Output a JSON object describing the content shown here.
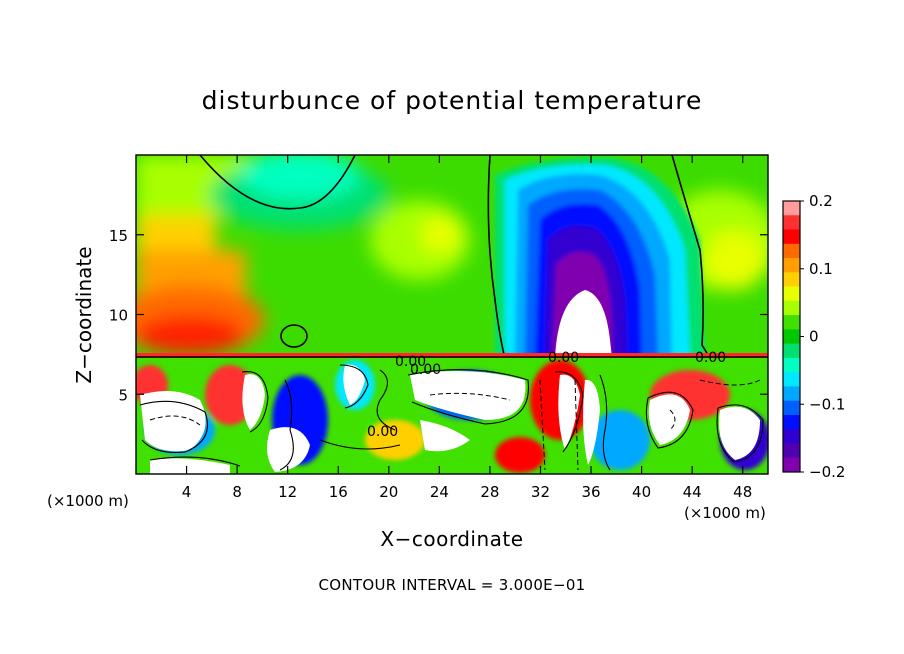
{
  "chart_data": {
    "type": "heatmap",
    "title": "disturbunce of potential temperature",
    "xlabel": "X−coordinate",
    "ylabel": "Z−coordinate",
    "x_unit": "(×1000 m)",
    "x_ticks": [
      4,
      8,
      12,
      16,
      20,
      24,
      28,
      32,
      36,
      40,
      44,
      48
    ],
    "x_tick_labels": [
      "4",
      "8",
      "12",
      "16",
      "20",
      "24",
      "28",
      "32",
      "36",
      "40",
      "44",
      "48"
    ],
    "xlim": [
      0,
      50
    ],
    "y_ticks": [
      5,
      10,
      15
    ],
    "y_tick_labels": [
      "5",
      "10",
      "15"
    ],
    "ylim": [
      0,
      20
    ],
    "colorbar": {
      "range": [
        -0.2,
        0.2
      ],
      "ticks": [
        0.2,
        0.1,
        0,
        -0.1,
        -0.2
      ],
      "tick_labels": [
        "0.2",
        "0.1",
        "0",
        "−0.1",
        "−0.2"
      ],
      "colors": [
        "#ff9c9c",
        "#ff3030",
        "#ff0000",
        "#ff6a00",
        "#ffa000",
        "#ffd000",
        "#e8ff00",
        "#a8ff00",
        "#40e000",
        "#00c800",
        "#00e070",
        "#00ffc0",
        "#00e8ff",
        "#00a8ff",
        "#0060ff",
        "#0010ff",
        "#3000d0",
        "#5000b0",
        "#8000b0"
      ]
    },
    "contour_labels": [
      "0.00",
      "0.00",
      "0.00",
      "0.00",
      "0.00"
    ],
    "contour_interval_note": "CONTOUR INTERVAL = 3.000E−01",
    "features": [
      {
        "name": "warm anomaly",
        "x_range": [
          0,
          12
        ],
        "z_range": [
          7.5,
          12
        ],
        "value": 0.13
      },
      {
        "name": "cold anomaly",
        "x_range": [
          29,
          42
        ],
        "z_range": [
          8,
          19
        ],
        "value": -0.2
      },
      {
        "name": "interface",
        "z": 7.3
      }
    ]
  }
}
